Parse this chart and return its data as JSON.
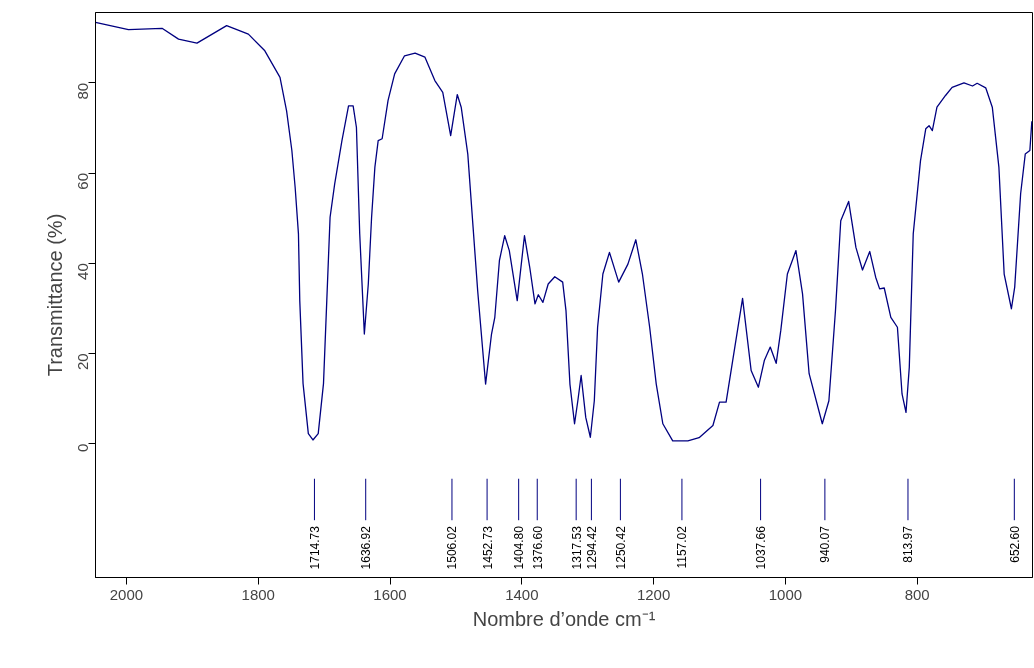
{
  "chart_data": {
    "type": "line",
    "xlabel": "Nombre d’onde cm⁻¹",
    "ylabel": "Transmittance (%)",
    "x": [
      2047,
      1997,
      1946,
      1921,
      1893,
      1848,
      1815,
      1790,
      1767,
      1757,
      1749,
      1744,
      1739,
      1737,
      1732,
      1724,
      1717,
      1709,
      1701,
      1696,
      1691,
      1684,
      1673,
      1663,
      1656,
      1651,
      1646,
      1639,
      1633,
      1628,
      1623,
      1618,
      1612,
      1603,
      1593,
      1578,
      1562,
      1547,
      1532,
      1520,
      1508,
      1498,
      1492,
      1482,
      1474,
      1467,
      1455,
      1446,
      1441,
      1434,
      1426,
      1419,
      1407,
      1396,
      1388,
      1380,
      1375,
      1368,
      1360,
      1350,
      1338,
      1333,
      1327,
      1320,
      1315,
      1310,
      1303,
      1296,
      1290,
      1285,
      1277,
      1267,
      1253,
      1239,
      1227,
      1217,
      1206,
      1196,
      1186,
      1171,
      1148,
      1131,
      1110,
      1100,
      1090,
      1080,
      1065,
      1052,
      1041,
      1032,
      1023,
      1014,
      1007,
      997,
      984,
      974,
      964,
      944,
      934,
      924,
      916,
      904,
      893,
      883,
      872,
      863,
      857,
      850,
      840,
      830,
      823,
      817,
      812,
      806,
      795,
      787,
      782,
      777,
      770,
      757,
      747,
      729,
      716,
      709,
      696,
      686,
      676,
      668,
      657,
      652,
      643,
      636,
      629,
      626
    ],
    "series": [
      {
        "color": "#000080",
        "values": [
          93.4,
          91.8,
          92.1,
          89.7,
          88.8,
          92.7,
          90.8,
          87.1,
          81.2,
          73.8,
          65,
          56.8,
          46.5,
          31.7,
          13.3,
          2.2,
          0.8,
          2.2,
          13.3,
          31.7,
          50.2,
          57.6,
          67.2,
          74.9,
          74.9,
          70.1,
          46.5,
          24.3,
          35.4,
          50.2,
          61.3,
          67.2,
          67.6,
          76.1,
          82,
          86,
          86.6,
          85.7,
          80.5,
          77.9,
          68.3,
          77.4,
          74.6,
          64.2,
          48,
          33.9,
          13.2,
          24.3,
          28,
          40.6,
          46.1,
          42.8,
          31.7,
          46.1,
          39.1,
          31,
          33,
          31.3,
          35.4,
          37,
          35.8,
          29.5,
          13.2,
          4.4,
          9.5,
          15.1,
          5.8,
          1.4,
          9.5,
          25.8,
          37.6,
          42.4,
          35.8,
          39.8,
          45.2,
          37.6,
          25.8,
          13.2,
          4.4,
          0.6,
          0.6,
          1.3,
          4,
          9.2,
          9.2,
          18.4,
          32.2,
          16.2,
          12.5,
          18.4,
          21.4,
          17.8,
          25.1,
          37.6,
          42.8,
          33.2,
          15.5,
          4.4,
          9.5,
          29.5,
          49.4,
          53.7,
          43.5,
          38.5,
          42.6,
          36.9,
          34.3,
          34.5,
          28,
          25.8,
          11,
          6.9,
          16.9,
          46.5,
          62.7,
          69.8,
          70.5,
          69.4,
          74.6,
          77.2,
          79,
          80,
          79.3,
          79.9,
          78.9,
          74.6,
          61.3,
          37.6,
          29.9,
          34.7,
          55.4,
          64.2,
          65,
          71.5
        ]
      }
    ],
    "xlim": [
      2047,
      625
    ],
    "ylim": [
      -29.7,
      95.6
    ],
    "xticks": [
      2000,
      1800,
      1600,
      1400,
      1200,
      1000,
      800
    ],
    "yticks": [
      0,
      20,
      40,
      60,
      80
    ],
    "grid": false,
    "marker": "none",
    "line_style": "solid",
    "ref_lines": [
      {
        "axis": "x",
        "value": 1714.73,
        "label": "1714.73",
        "color": "#000080"
      },
      {
        "axis": "x",
        "value": 1636.92,
        "label": "1636.92",
        "color": "#000080"
      },
      {
        "axis": "x",
        "value": 1506.02,
        "label": "1506.02",
        "color": "#000080"
      },
      {
        "axis": "x",
        "value": 1452.73,
        "label": "1452.73",
        "color": "#000080"
      },
      {
        "axis": "x",
        "value": 1404.8,
        "label": "1404.80",
        "color": "#000080"
      },
      {
        "axis": "x",
        "value": 1376.6,
        "label": "1376.60",
        "color": "#000080"
      },
      {
        "axis": "x",
        "value": 1317.53,
        "label": "1317.53",
        "color": "#000080"
      },
      {
        "axis": "x",
        "value": 1294.42,
        "label": "1294.42",
        "color": "#000080"
      },
      {
        "axis": "x",
        "value": 1250.42,
        "label": "1250.42",
        "color": "#000080"
      },
      {
        "axis": "x",
        "value": 1157.02,
        "label": "1157.02",
        "color": "#000080"
      },
      {
        "axis": "x",
        "value": 1037.66,
        "label": "1037.66",
        "color": "#000080"
      },
      {
        "axis": "x",
        "value": 940.07,
        "label": "940.07",
        "color": "#000080"
      },
      {
        "axis": "x",
        "value": 813.97,
        "label": "813.97",
        "color": "#000080"
      },
      {
        "axis": "x",
        "value": 652.6,
        "label": "652.60",
        "color": "#000080"
      }
    ]
  }
}
